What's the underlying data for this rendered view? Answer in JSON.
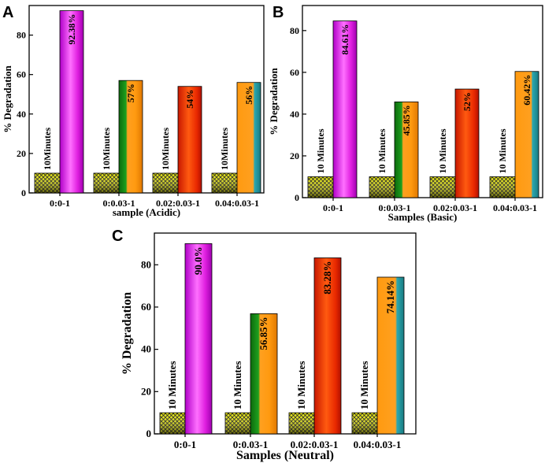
{
  "figure": {
    "panels": [
      {
        "letter": "A",
        "xlabel": "sample (Acidic)",
        "ylabel": "% Degradation"
      },
      {
        "letter": "B",
        "xlabel": "Samples (Basic)",
        "ylabel": "% Degradation"
      },
      {
        "letter": "C",
        "xlabel": "Samples (Neutral)",
        "ylabel": "% Degradation"
      }
    ]
  },
  "chart_data": [
    {
      "type": "bar",
      "title": "A",
      "xlabel": "sample (Acidic)",
      "ylabel": "% Degradation",
      "ylim": [
        0,
        95
      ],
      "yticks": [
        0,
        20,
        40,
        60,
        80
      ],
      "categories": [
        "0:0-1",
        "0:0.03-1",
        "0.02:0.03-1",
        "0.04:0.03-1"
      ],
      "series": [
        {
          "name": "10 minutes",
          "values": [
            10,
            10,
            10,
            10
          ],
          "labels": [
            "10Minutes",
            "10Minutes",
            "10Minutes",
            "10Minutes"
          ]
        },
        {
          "name": "Degradation",
          "values": [
            92.38,
            57,
            54,
            56
          ],
          "labels": [
            "92.38%",
            "57%",
            "54%",
            "56%"
          ],
          "colors": [
            "#e020e0",
            "#1a8a1a",
            "#e02a00",
            "#2aa0a8"
          ]
        }
      ]
    },
    {
      "type": "bar",
      "title": "B",
      "xlabel": "Samples (Basic)",
      "ylabel": "% Degradation",
      "ylim": [
        0,
        92
      ],
      "yticks": [
        0,
        20,
        40,
        60,
        80
      ],
      "categories": [
        "0:0-1",
        "0:0.03-1",
        "0.02:0.03-1",
        "0.04:0.03-1"
      ],
      "series": [
        {
          "name": "10 minutes",
          "values": [
            10,
            10,
            10,
            10
          ],
          "labels": [
            "10 Minutes",
            "10 Minutes",
            "10 Minutes",
            "10 Minutes"
          ]
        },
        {
          "name": "Degradation",
          "values": [
            84.61,
            45.85,
            52,
            60.42
          ],
          "labels": [
            "84.61%",
            "45.85%",
            "52%",
            "60.42%"
          ],
          "colors": [
            "#e020e0",
            "#1a8a1a",
            "#e02a00",
            "#2aa0a8"
          ]
        }
      ]
    },
    {
      "type": "bar",
      "title": "C",
      "xlabel": "Samples (Neutral)",
      "ylabel": "% Degradation",
      "ylim": [
        0,
        95
      ],
      "yticks": [
        0,
        20,
        40,
        60,
        80
      ],
      "categories": [
        "0:0-1",
        "0:0.03-1",
        "0.02:0.03-1",
        "0.04:0.03-1"
      ],
      "series": [
        {
          "name": "10 minutes",
          "values": [
            10,
            10,
            10,
            10
          ],
          "labels": [
            "10 Minutes",
            "10 Minutes",
            "10 Minutes",
            "10 Minutes"
          ]
        },
        {
          "name": "Degradation",
          "values": [
            90.0,
            56.85,
            83.28,
            74.14
          ],
          "labels": [
            "90.0%",
            "56.85%",
            "83.28%",
            "74.14%"
          ],
          "colors": [
            "#e020e0",
            "#1a8a1a",
            "#e02a00",
            "#2aa0a8"
          ]
        }
      ]
    }
  ]
}
